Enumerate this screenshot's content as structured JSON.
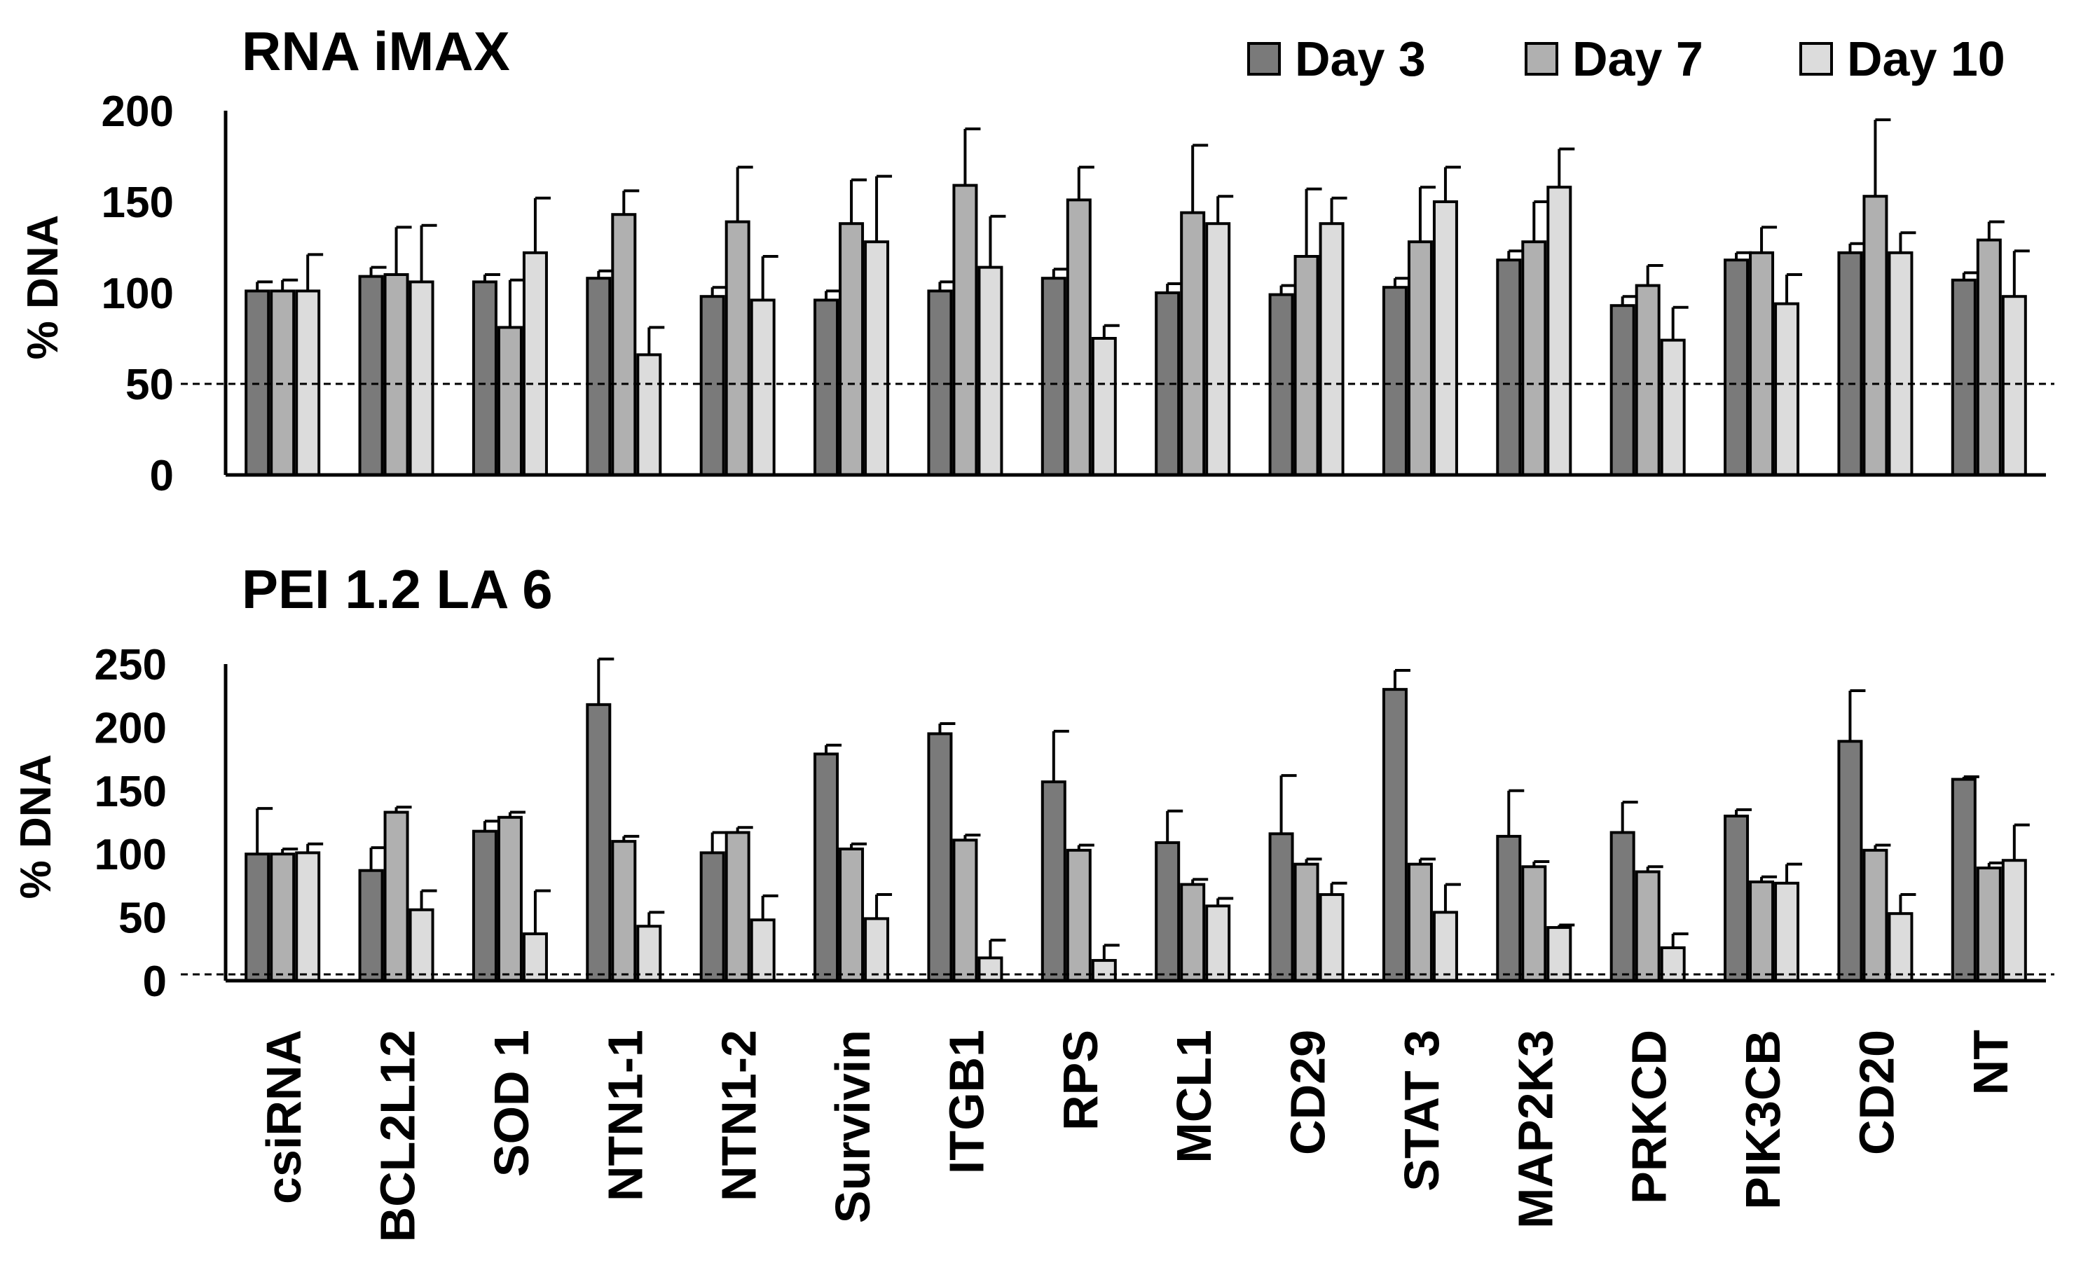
{
  "legend": {
    "entries": [
      "Day 3",
      "Day 7",
      "Day 10"
    ],
    "colors": [
      "#7a7a7a",
      "#b0b0b0",
      "#dcdcdc"
    ]
  },
  "chart_data": [
    {
      "type": "bar",
      "title": "RNA iMAX",
      "ylabel": "% DNA",
      "ylim": [
        0,
        200
      ],
      "yticks": [
        0,
        50,
        100,
        150,
        200
      ],
      "reference_line": 50,
      "categories": [
        "csiRNA",
        "BCL2L12",
        "SOD 1",
        "NTN1-1",
        "NTN1-2",
        "Survivin",
        "ITGB1",
        "RPS",
        "MCL1",
        "CD29",
        "STAT 3",
        "MAP2K3",
        "PRKCD",
        "PIK3CB",
        "CD20",
        "NT"
      ],
      "series": [
        {
          "name": "Day 3",
          "values": [
            101,
            109,
            106,
            108,
            98,
            96,
            101,
            108,
            100,
            99,
            103,
            118,
            93,
            118,
            122,
            107
          ],
          "errors": [
            5,
            5,
            4,
            4,
            5,
            5,
            5,
            5,
            5,
            5,
            5,
            5,
            5,
            4,
            5,
            4
          ]
        },
        {
          "name": "Day 7",
          "values": [
            101,
            110,
            81,
            143,
            139,
            138,
            159,
            151,
            144,
            120,
            128,
            128,
            104,
            122,
            153,
            129
          ],
          "errors": [
            6,
            26,
            26,
            13,
            30,
            24,
            31,
            18,
            37,
            37,
            30,
            22,
            11,
            14,
            42,
            10
          ]
        },
        {
          "name": "Day 10",
          "values": [
            101,
            106,
            122,
            66,
            96,
            128,
            114,
            75,
            138,
            138,
            150,
            158,
            74,
            94,
            122,
            98
          ],
          "errors": [
            20,
            31,
            30,
            15,
            24,
            36,
            28,
            7,
            15,
            14,
            19,
            21,
            18,
            16,
            11,
            25
          ]
        }
      ]
    },
    {
      "type": "bar",
      "title": "PEI 1.2 LA 6",
      "ylabel": "% DNA",
      "ylim": [
        0,
        250
      ],
      "yticks": [
        0,
        50,
        100,
        150,
        200,
        250
      ],
      "reference_line": 5,
      "categories": [
        "csiRNA",
        "BCL2L12",
        "SOD 1",
        "NTN1-1",
        "NTN1-2",
        "Survivin",
        "ITGB1",
        "RPS",
        "MCL1",
        "CD29",
        "STAT 3",
        "MAP2K3",
        "PRKCD",
        "PIK3CB",
        "CD20",
        "NT"
      ],
      "series": [
        {
          "name": "Day 3",
          "values": [
            100,
            87,
            118,
            218,
            101,
            179,
            195,
            157,
            109,
            116,
            230,
            114,
            117,
            130,
            189,
            159
          ],
          "errors": [
            36,
            18,
            8,
            36,
            16,
            7,
            8,
            40,
            25,
            46,
            15,
            36,
            24,
            5,
            40,
            2
          ]
        },
        {
          "name": "Day 7",
          "values": [
            100,
            133,
            129,
            110,
            117,
            104,
            111,
            103,
            76,
            92,
            92,
            90,
            86,
            78,
            103,
            89
          ],
          "errors": [
            4,
            4,
            4,
            4,
            4,
            4,
            4,
            4,
            4,
            4,
            4,
            4,
            4,
            4,
            4,
            4
          ]
        },
        {
          "name": "Day 10",
          "values": [
            101,
            56,
            37,
            43,
            48,
            49,
            18,
            16,
            59,
            68,
            54,
            42,
            26,
            77,
            53,
            95
          ],
          "errors": [
            7,
            15,
            34,
            11,
            19,
            19,
            14,
            12,
            6,
            9,
            22,
            2,
            11,
            15,
            15,
            28
          ]
        }
      ]
    }
  ]
}
